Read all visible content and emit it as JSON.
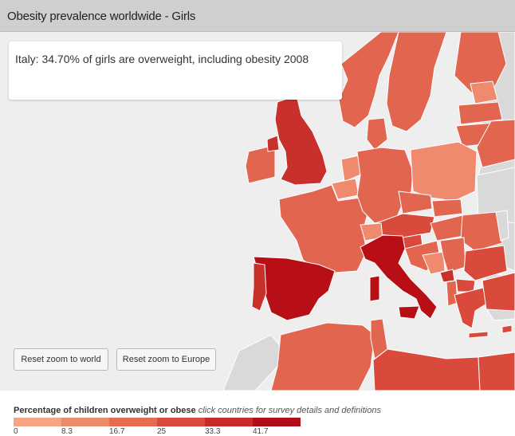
{
  "header": {
    "title": "Obesity prevalence worldwide - Girls"
  },
  "tooltip": {
    "text": "Italy: 34.70% of girls are overweight, including obesity 2008"
  },
  "buttons": {
    "reset_world": "Reset zoom to world",
    "reset_europe": "Reset zoom to Europe"
  },
  "legend": {
    "title": "Percentage of children overweight or obese",
    "hint": "click countries for survey details and definitions",
    "ticks": [
      "0",
      "8.3",
      "16.7",
      "25",
      "33.3",
      "41.7"
    ],
    "colors": [
      "#f5a584",
      "#ee8a6c",
      "#e56b52",
      "#d94a3d",
      "#c82a2a",
      "#b10d18"
    ]
  },
  "map": {
    "background": "#eeeeee",
    "no_data_color": "#d9d9d9",
    "border_color": "#ffffff",
    "selected_country": "Italy"
  }
}
